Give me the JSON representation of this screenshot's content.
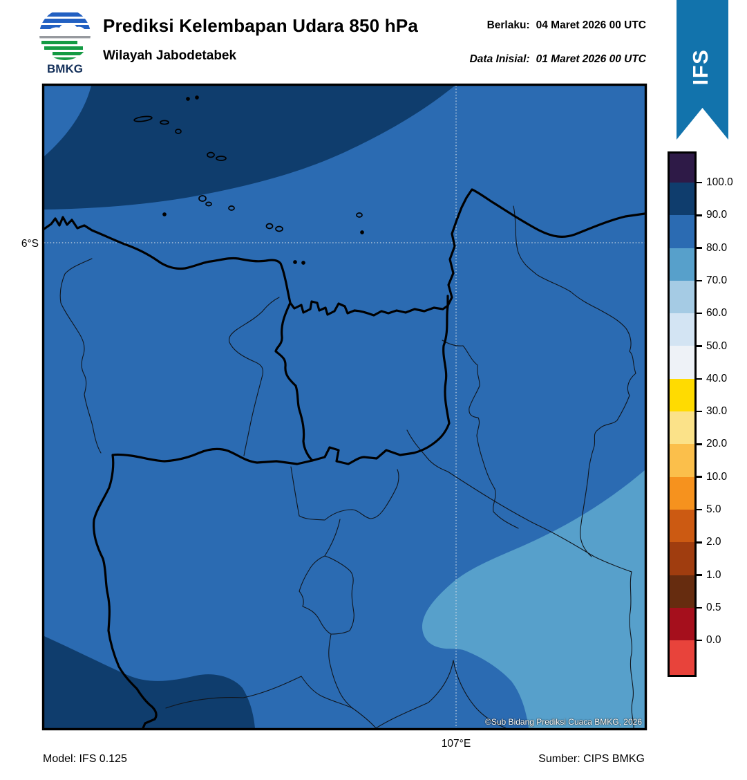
{
  "header": {
    "title": "Prediksi Kelembapan Udara 850 hPa",
    "subtitle": "Wilayah Jabodetabek",
    "valid_label": "Berlaku:",
    "valid_value": "04 Maret 2026 00 UTC",
    "initial_label": "Data Inisial:",
    "initial_value": "01 Maret 2026 00 UTC",
    "logo_text": "BMKG"
  },
  "ribbon": {
    "label": "IFS",
    "color": "#1273ac"
  },
  "map": {
    "lat_label": "6°S",
    "lon_label": "107°E",
    "copyright": "©Sub Bidang Prediksi Cuaca BMKG, 2026",
    "colors": {
      "humidity_80_90": "#2b6bb2",
      "humidity_90_100": "#0f3d6d",
      "humidity_70_80": "#57a0cb",
      "gridline": "#c9d6e2",
      "boundary_thin": "#10151c",
      "boundary_thick": "#000000"
    },
    "zones": [
      {
        "location": "north-offshore-band",
        "humidity_range": "90.0–100.0"
      },
      {
        "location": "top-left-corner-patch",
        "humidity_range": "80.0–90.0"
      },
      {
        "location": "main-land-area",
        "humidity_range": "80.0–90.0"
      },
      {
        "location": "southwest-corner-blob",
        "humidity_range": "90.0–100.0"
      },
      {
        "location": "southeast-blob",
        "humidity_range": "70.0–80.0"
      }
    ]
  },
  "colorbar": {
    "tick_labels": [
      "100.0",
      "90.0",
      "80.0",
      "70.0",
      "60.0",
      "50.0",
      "40.0",
      "30.0",
      "20.0",
      "10.0",
      "5.0",
      "2.0",
      "1.0",
      "0.5",
      "0.0"
    ],
    "segment_colors_top_to_bottom": [
      "#2e1a47",
      "#0f3d6d",
      "#2b6bb2",
      "#57a0cb",
      "#a5cbe4",
      "#d3e4f3",
      "#eef2f7",
      "#ffdb01",
      "#fbe289",
      "#fbbf4b",
      "#f6921e",
      "#cc5a12",
      "#a03d0f",
      "#662c0f",
      "#a50f1c",
      "#e8433b"
    ]
  },
  "footer": {
    "model": "Model: IFS 0.125",
    "source": "Sumber: CIPS BMKG"
  }
}
